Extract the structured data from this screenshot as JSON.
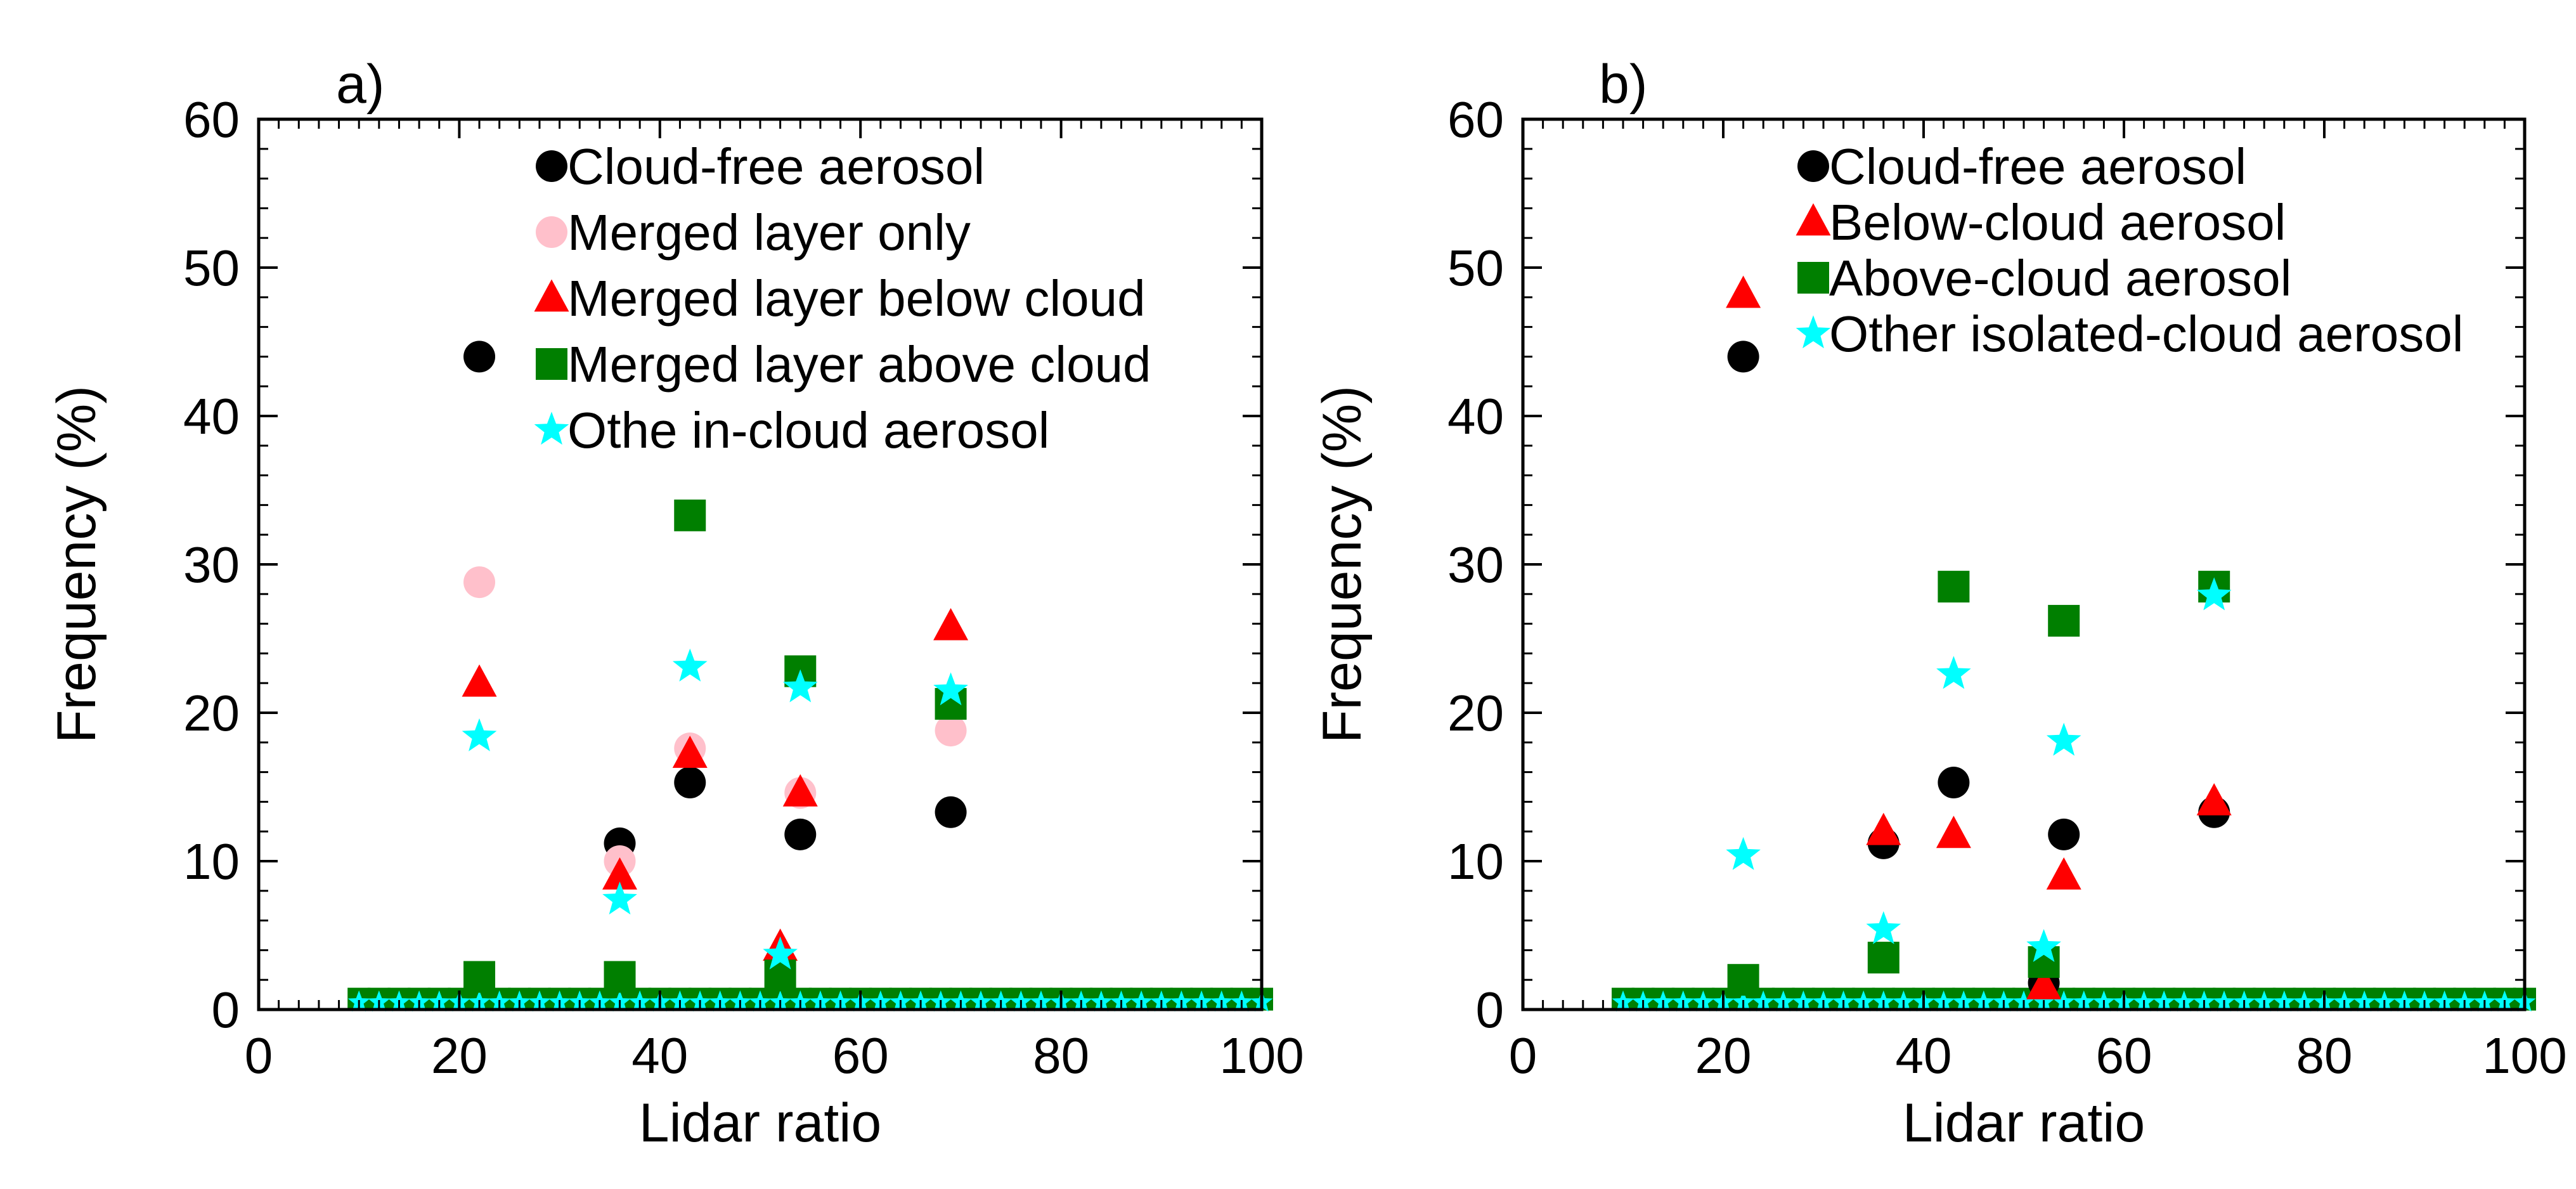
{
  "colors": {
    "black": "#000000",
    "pink": "#ffc0cb",
    "red": "#ff0000",
    "green": "#007f00",
    "cyan": "#00ffff"
  },
  "chart_data": [
    {
      "type": "scatter",
      "panel_label": "a)",
      "xlabel": "Lidar ratio",
      "ylabel": "Frequency (%)",
      "xlim": [
        0,
        100
      ],
      "ylim": [
        0,
        60
      ],
      "xticks": [
        0,
        20,
        40,
        60,
        80,
        100
      ],
      "yticks": [
        0,
        10,
        20,
        30,
        40,
        50,
        60
      ],
      "legend_position": "top-right",
      "grid": false,
      "series": [
        {
          "name": "Cloud-free aerosol",
          "marker": "circle",
          "color": "#000000",
          "x": [
            22,
            36,
            43,
            54,
            69
          ],
          "y": [
            44.0,
            11.2,
            15.3,
            11.8,
            13.3
          ]
        },
        {
          "name": "Merged layer only",
          "marker": "circle",
          "color": "#ffc0cb",
          "x": [
            22,
            36,
            43,
            54,
            69
          ],
          "y": [
            28.8,
            10.0,
            17.6,
            14.6,
            18.8
          ]
        },
        {
          "name": "Merged layer below cloud",
          "marker": "triangle",
          "color": "#ff0000",
          "x": [
            22,
            36,
            43,
            52,
            54,
            69
          ],
          "y": [
            22.0,
            9.0,
            17.2,
            4.2,
            14.6,
            25.8
          ]
        },
        {
          "name": "Merged layer above cloud",
          "marker": "square",
          "color": "#007f00",
          "x": [
            22,
            36,
            43,
            52,
            54,
            69
          ],
          "y": [
            2.2,
            2.2,
            33.3,
            2.3,
            22.8,
            20.6
          ]
        },
        {
          "name": "Othe in-cloud aerosol",
          "marker": "star",
          "color": "#00ffff",
          "x": [
            22,
            36,
            43,
            52,
            54,
            69
          ],
          "y": [
            18.4,
            7.4,
            23.1,
            3.7,
            21.7,
            21.5
          ]
        }
      ],
      "baseline_series": [
        {
          "color": "#007f00",
          "marker": "square",
          "x_range": [
            10,
            100
          ],
          "step": 2,
          "y": 0.7
        },
        {
          "color": "#00ffff",
          "marker": "star",
          "x_range": [
            10,
            100
          ],
          "step": 2,
          "y": 0.5
        }
      ]
    },
    {
      "type": "scatter",
      "panel_label": "b)",
      "xlabel": "Lidar ratio",
      "ylabel": "Frequency (%)",
      "xlim": [
        0,
        100
      ],
      "ylim": [
        0,
        60
      ],
      "xticks": [
        0,
        20,
        40,
        60,
        80,
        100
      ],
      "yticks": [
        0,
        10,
        20,
        30,
        40,
        50,
        60
      ],
      "legend_position": "top-right",
      "grid": false,
      "series": [
        {
          "name": "Cloud-free aerosol",
          "marker": "circle",
          "color": "#000000",
          "x": [
            22,
            36,
            43,
            52,
            54,
            69
          ],
          "y": [
            44.0,
            11.2,
            15.3,
            1.8,
            11.8,
            13.3
          ]
        },
        {
          "name": "Below-cloud aerosol",
          "marker": "triangle",
          "color": "#ff0000",
          "x": [
            22,
            36,
            43,
            52,
            54,
            69
          ],
          "y": [
            48.2,
            12.0,
            11.8,
            1.6,
            9.0,
            14.0
          ]
        },
        {
          "name": "Above-cloud aerosol",
          "marker": "square",
          "color": "#007f00",
          "x": [
            22,
            36,
            43,
            52,
            54,
            69
          ],
          "y": [
            2.0,
            3.5,
            28.5,
            3.2,
            26.2,
            28.5
          ]
        },
        {
          "name": "Other isolated-cloud aerosol",
          "marker": "star",
          "color": "#00ffff",
          "x": [
            22,
            36,
            43,
            52,
            54,
            69
          ],
          "y": [
            10.4,
            5.4,
            22.6,
            4.2,
            18.1,
            27.9
          ]
        }
      ],
      "baseline_series": [
        {
          "color": "#007f00",
          "marker": "square",
          "x_range": [
            10,
            100
          ],
          "step": 2,
          "y": 0.7
        },
        {
          "color": "#00ffff",
          "marker": "star",
          "x_range": [
            10,
            100
          ],
          "step": 2,
          "y": 0.5
        }
      ]
    }
  ]
}
